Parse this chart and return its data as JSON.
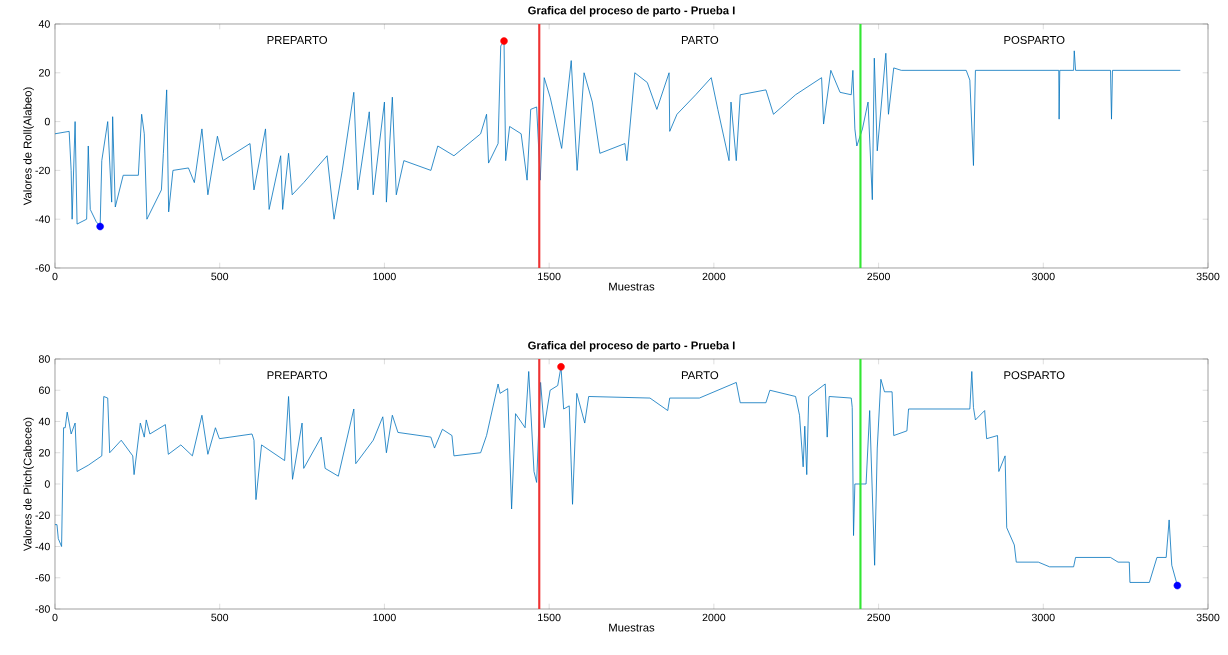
{
  "chart_data": [
    {
      "type": "line",
      "title": "Grafica del proceso de parto - Prueba I",
      "xlabel": "Muestras",
      "ylabel": "Valores de Roll(Alabeo)",
      "xlim": [
        0,
        3500
      ],
      "xticks": [
        0,
        500,
        1000,
        1500,
        2000,
        2500,
        3000,
        3500
      ],
      "ylim": [
        -60,
        40
      ],
      "yticks": [
        -60,
        -40,
        -20,
        0,
        20,
        40
      ],
      "series": [
        {
          "color": "#0072bd",
          "x": [
            0,
            43,
            49,
            52,
            61,
            67,
            96,
            101,
            107,
            125,
            137,
            142,
            160,
            172,
            175,
            183,
            207,
            253,
            263,
            271,
            279,
            323,
            329,
            339,
            345,
            358,
            405,
            423,
            446,
            464,
            493,
            510,
            592,
            604,
            639,
            650,
            685,
            691,
            709,
            720,
            755,
            826,
            847,
            872,
            907,
            919,
            954,
            966,
            1000,
            1006,
            1024,
            1036,
            1059,
            1141,
            1162,
            1211,
            1292,
            1310,
            1316,
            1345,
            1353,
            1363,
            1368,
            1380,
            1415,
            1433,
            1444,
            1462,
            1473,
            1485,
            1503,
            1538,
            1567,
            1585,
            1606,
            1631,
            1654,
            1730,
            1736,
            1760,
            1798,
            1827,
            1864,
            1866,
            1888,
            1945,
            1992,
            2012,
            2046,
            2052,
            2068,
            2080,
            2158,
            2181,
            2248,
            2327,
            2333,
            2355,
            2383,
            2417,
            2422,
            2428,
            2434,
            2451,
            2468,
            2481,
            2487,
            2496,
            2522,
            2530,
            2546,
            2569,
            2766,
            2777,
            2788,
            2794,
            3047,
            3048,
            3050,
            3092,
            3094,
            3098,
            3204,
            3207,
            3210,
            3416
          ],
          "values": [
            -5,
            -4,
            -20,
            -40,
            0,
            -42,
            -40,
            -10,
            -36,
            -41,
            -43,
            -16,
            0,
            -33,
            2,
            -35,
            -22,
            -22,
            3,
            -5,
            -40,
            -28,
            -13,
            13,
            -37,
            -20,
            -19,
            -25,
            -3,
            -30,
            -6,
            -16,
            -9,
            -28,
            -3,
            -36,
            -14,
            -36,
            -13,
            -30,
            -25,
            -14,
            -40,
            -20,
            12,
            -28,
            4,
            -30,
            8,
            -33,
            10,
            -30,
            -16,
            -20,
            -10,
            -14,
            -5,
            3,
            -17,
            -9,
            31,
            33,
            -16,
            -2,
            -5,
            -24,
            5,
            6,
            -24,
            18,
            10,
            -11,
            25,
            -20,
            20,
            8,
            -13,
            -9,
            -16,
            20,
            16,
            5,
            20,
            -4,
            3,
            11,
            18,
            5,
            -16,
            8,
            -16,
            11,
            13,
            3,
            11,
            18,
            -1,
            21,
            12,
            11,
            21,
            -3,
            -10,
            -3,
            8,
            -32,
            26,
            -12,
            28,
            3,
            22,
            21,
            21,
            17,
            -18,
            21,
            21,
            1,
            21,
            21,
            29,
            21,
            21,
            1,
            21,
            21
          ]
        },
        {
          "type": "scatter",
          "color": "#ff0000",
          "x": [
            1363
          ],
          "values": [
            33
          ]
        },
        {
          "type": "scatter",
          "color": "#0000ff",
          "x": [
            137
          ],
          "values": [
            -43
          ]
        }
      ],
      "ref_lines": [
        {
          "axis": "x",
          "value": 1470,
          "color": "#ee3333"
        },
        {
          "axis": "x",
          "value": 2445,
          "color": "#33e633"
        }
      ],
      "annotations": [
        "PREPARTO",
        "PARTO",
        "POSPARTO"
      ]
    },
    {
      "type": "line",
      "title": "Grafica del proceso de parto - Prueba I",
      "xlabel": "Muestras",
      "ylabel": "Valores de Pitch(Cabeceo)",
      "xlim": [
        0,
        3500
      ],
      "xticks": [
        0,
        500,
        1000,
        1500,
        2000,
        2500,
        3000,
        3500
      ],
      "ylim": [
        -80,
        80
      ],
      "yticks": [
        -80,
        -60,
        -40,
        -20,
        0,
        20,
        40,
        60,
        80
      ],
      "series": [
        {
          "color": "#0072bd",
          "x": [
            0,
            6,
            10,
            20,
            26,
            31,
            37,
            49,
            61,
            67,
            101,
            142,
            148,
            160,
            166,
            201,
            236,
            240,
            259,
            271,
            277,
            288,
            335,
            344,
            382,
            417,
            446,
            464,
            487,
            499,
            598,
            604,
            610,
            627,
            697,
            709,
            721,
            750,
            755,
            808,
            820,
            860,
            907,
            913,
            966,
            995,
            1006,
            1024,
            1041,
            1141,
            1152,
            1176,
            1205,
            1211,
            1292,
            1310,
            1345,
            1351,
            1374,
            1386,
            1398,
            1427,
            1438,
            1454,
            1462,
            1474,
            1485,
            1503,
            1526,
            1536,
            1544,
            1561,
            1571,
            1584,
            1608,
            1620,
            1806,
            1860,
            1866,
            1956,
            2068,
            2080,
            2158,
            2170,
            2248,
            2260,
            2271,
            2276,
            2282,
            2288,
            2338,
            2344,
            2350,
            2417,
            2420,
            2424,
            2428,
            2462,
            2473,
            2488,
            2496,
            2507,
            2518,
            2541,
            2546,
            2586,
            2591,
            2777,
            2783,
            2788,
            2794,
            2822,
            2828,
            2861,
            2865,
            2884,
            2889,
            2912,
            2918,
            2985,
            3019,
            3092,
            3098,
            3204,
            3227,
            3261,
            3263,
            3322,
            3345,
            3373,
            3382,
            3390,
            3407
          ],
          "values": [
            -26,
            -26,
            -35,
            -40,
            36,
            36,
            46,
            32,
            39,
            8,
            12,
            18,
            56,
            55,
            20,
            28,
            18,
            6,
            39,
            30,
            41,
            32,
            38,
            19,
            25,
            18,
            44,
            19,
            36,
            29,
            32,
            28,
            -10,
            25,
            15,
            56,
            3,
            39,
            10,
            30,
            10,
            5,
            48,
            13,
            28,
            43,
            20,
            44,
            33,
            30,
            23,
            35,
            31,
            18,
            20,
            31,
            64,
            58,
            61,
            -16,
            45,
            36,
            72,
            8,
            1,
            65,
            36,
            60,
            63,
            75,
            48,
            50,
            -13,
            58,
            39,
            56,
            55,
            47,
            55,
            55,
            65,
            52,
            52,
            60,
            56,
            44,
            11,
            37,
            6,
            56,
            64,
            30,
            56,
            55,
            49,
            -33,
            0,
            0,
            47,
            -52,
            23,
            67,
            59,
            59,
            31,
            34,
            48,
            48,
            72,
            49,
            41,
            47,
            29,
            31,
            8,
            18,
            -28,
            -39,
            -50,
            -50,
            -53,
            -53,
            -47,
            -47,
            -50,
            -50,
            -63,
            -63,
            -47,
            -47,
            -23,
            -52,
            -65
          ]
        },
        {
          "type": "scatter",
          "color": "#ff0000",
          "x": [
            1536
          ],
          "values": [
            75
          ]
        },
        {
          "type": "scatter",
          "color": "#0000ff",
          "x": [
            3407
          ],
          "values": [
            -65
          ]
        }
      ],
      "ref_lines": [
        {
          "axis": "x",
          "value": 1470,
          "color": "#ee3333"
        },
        {
          "axis": "x",
          "value": 2445,
          "color": "#33e633"
        }
      ],
      "annotations": [
        "PREPARTO",
        "PARTO",
        "POSPARTO"
      ]
    }
  ]
}
